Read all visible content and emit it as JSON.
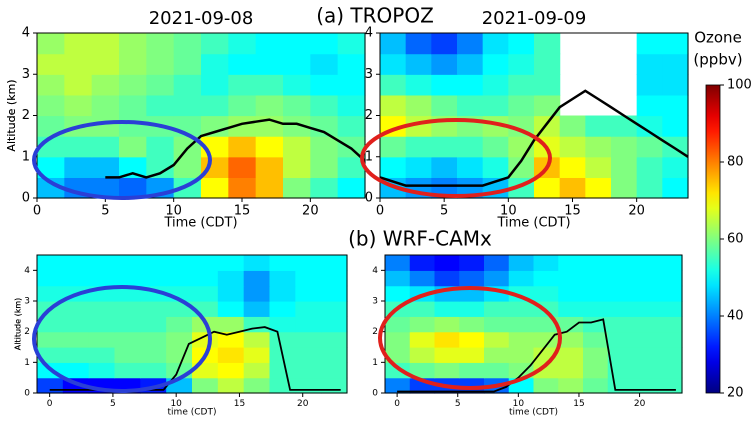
{
  "section_titles": [
    "(a) TROPOZ",
    "(b) WRF-CAMx"
  ],
  "colorbar": {
    "label": [
      "Ozone",
      "(ppbv)"
    ],
    "clim": [
      20,
      100
    ],
    "ticks": [
      20,
      40,
      60,
      80,
      100
    ]
  },
  "chart_data": [
    {
      "type": "heatmap",
      "title": "2021-09-08",
      "x_label": "Time (CDT)",
      "y_label": "Altitude (km)",
      "xlim": [
        0,
        24
      ],
      "ylim": [
        0,
        4
      ],
      "xticks": [
        0,
        5,
        10,
        15,
        20
      ],
      "yticks": [
        0,
        1,
        2,
        3,
        4
      ],
      "z": [
        [
          45,
          40,
          40,
          38,
          42,
          55,
          70,
          80,
          75,
          60,
          55,
          50
        ],
        [
          50,
          45,
          45,
          50,
          55,
          60,
          75,
          82,
          75,
          65,
          60,
          55
        ],
        [
          55,
          55,
          55,
          60,
          55,
          60,
          70,
          75,
          70,
          65,
          60,
          58
        ],
        [
          58,
          60,
          60,
          58,
          58,
          58,
          60,
          62,
          62,
          60,
          58,
          55
        ],
        [
          60,
          62,
          60,
          58,
          55,
          55,
          55,
          58,
          60,
          58,
          55,
          52
        ],
        [
          62,
          65,
          62,
          60,
          58,
          55,
          52,
          55,
          55,
          52,
          50,
          50
        ],
        [
          65,
          65,
          65,
          62,
          60,
          58,
          52,
          50,
          50,
          50,
          48,
          50
        ],
        [
          62,
          65,
          65,
          62,
          60,
          58,
          55,
          52,
          50,
          50,
          50,
          52
        ]
      ],
      "line": {
        "color": "#000000",
        "x": [
          5,
          6,
          7,
          8,
          9,
          10,
          11,
          12,
          13,
          14,
          15,
          16,
          17,
          18,
          19,
          20,
          21,
          22,
          23,
          24
        ],
        "values": [
          0.5,
          0.5,
          0.6,
          0.5,
          0.6,
          0.8,
          1.2,
          1.5,
          1.6,
          1.7,
          1.8,
          1.85,
          1.9,
          1.8,
          1.8,
          1.7,
          1.6,
          1.4,
          1.2,
          0.9
        ]
      }
    },
    {
      "type": "heatmap",
      "title": "2021-09-09",
      "x_label": "Time (CDT)",
      "y_label": "Altitude (km)",
      "xlim": [
        0,
        24
      ],
      "ylim": [
        0,
        4
      ],
      "xticks": [
        0,
        5,
        10,
        15,
        20
      ],
      "yticks": [
        0,
        1,
        2,
        3,
        4
      ],
      "z": [
        [
          45,
          42,
          40,
          42,
          45,
          55,
          70,
          75,
          70,
          60,
          55,
          50
        ],
        [
          50,
          48,
          45,
          48,
          52,
          60,
          75,
          70,
          65,
          60,
          55,
          52
        ],
        [
          58,
          55,
          55,
          55,
          58,
          62,
          68,
          65,
          62,
          60,
          58,
          55
        ],
        [
          70,
          65,
          62,
          60,
          62,
          60,
          65,
          60,
          55,
          55,
          52,
          50
        ],
        [
          65,
          62,
          58,
          55,
          55,
          58,
          60,
          null,
          null,
          null,
          50,
          50
        ],
        [
          55,
          52,
          50,
          50,
          52,
          55,
          55,
          null,
          null,
          null,
          48,
          48
        ],
        [
          48,
          45,
          42,
          45,
          50,
          52,
          55,
          null,
          null,
          null,
          48,
          48
        ],
        [
          45,
          38,
          35,
          40,
          48,
          50,
          55,
          null,
          null,
          null,
          50,
          50
        ]
      ],
      "line": {
        "color": "#000000",
        "x": [
          0,
          2,
          4,
          6,
          8,
          10,
          11,
          12,
          13,
          14,
          15,
          16,
          17,
          18,
          19,
          20,
          21,
          22,
          23,
          24
        ],
        "values": [
          0.5,
          0.3,
          0.3,
          0.3,
          0.3,
          0.5,
          0.9,
          1.4,
          1.8,
          2.2,
          2.4,
          2.6,
          2.4,
          2.2,
          2.0,
          1.8,
          1.6,
          1.4,
          1.2,
          1.0
        ]
      }
    },
    {
      "type": "heatmap",
      "x_label": "time (CDT)",
      "y_label": "Altitude (km)",
      "xlim": [
        -1,
        23.5
      ],
      "ylim": [
        0,
        4.5
      ],
      "xticks": [
        0,
        5,
        10,
        15,
        20
      ],
      "yticks": [
        0,
        1,
        2,
        3,
        4
      ],
      "z": [
        [
          35,
          30,
          30,
          30,
          32,
          45,
          60,
          65,
          60,
          55,
          55,
          55
        ],
        [
          50,
          50,
          52,
          55,
          55,
          58,
          68,
          70,
          65,
          55,
          55,
          55
        ],
        [
          55,
          55,
          55,
          58,
          58,
          60,
          70,
          72,
          68,
          55,
          55,
          55
        ],
        [
          58,
          58,
          58,
          58,
          58,
          60,
          68,
          70,
          65,
          55,
          55,
          55
        ],
        [
          55,
          55,
          55,
          55,
          55,
          58,
          62,
          62,
          55,
          52,
          52,
          52
        ],
        [
          55,
          55,
          55,
          55,
          55,
          55,
          55,
          50,
          45,
          50,
          52,
          52
        ],
        [
          52,
          52,
          52,
          52,
          52,
          52,
          52,
          48,
          42,
          48,
          50,
          50
        ],
        [
          50,
          50,
          50,
          50,
          50,
          50,
          50,
          48,
          42,
          48,
          50,
          50
        ],
        [
          50,
          50,
          50,
          50,
          50,
          50,
          50,
          50,
          48,
          50,
          50,
          50
        ]
      ],
      "line": {
        "color": "#000000",
        "x": [
          0,
          1,
          2,
          3,
          4,
          5,
          6,
          7,
          8,
          9,
          10,
          11,
          12,
          13,
          14,
          15,
          16,
          17,
          18,
          19,
          20,
          21,
          22,
          23
        ],
        "values": [
          0.1,
          0.1,
          0.1,
          0.1,
          0.1,
          0.1,
          0.1,
          0.1,
          0.1,
          0.1,
          0.6,
          1.6,
          1.8,
          2.0,
          1.9,
          2.0,
          2.1,
          2.15,
          2.0,
          0.1,
          0.1,
          0.1,
          0.1,
          0.1
        ]
      }
    },
    {
      "type": "heatmap",
      "x_label": "time (CDT)",
      "y_label": "Altitude (km)",
      "xlim": [
        -1,
        23.5
      ],
      "ylim": [
        0,
        4.5
      ],
      "xticks": [
        0,
        5,
        10,
        15,
        20
      ],
      "yticks": [
        0,
        1,
        2,
        3,
        4
      ],
      "z": [
        [
          40,
          35,
          35,
          35,
          38,
          50,
          60,
          62,
          58,
          55,
          55,
          55
        ],
        [
          55,
          58,
          60,
          58,
          58,
          60,
          65,
          65,
          60,
          55,
          55,
          55
        ],
        [
          60,
          65,
          68,
          68,
          62,
          62,
          65,
          65,
          60,
          55,
          55,
          55
        ],
        [
          60,
          68,
          72,
          70,
          65,
          62,
          62,
          62,
          58,
          55,
          55,
          55
        ],
        [
          58,
          60,
          62,
          60,
          58,
          58,
          58,
          58,
          55,
          55,
          55,
          55
        ],
        [
          55,
          55,
          52,
          52,
          55,
          55,
          55,
          52,
          52,
          52,
          52,
          52
        ],
        [
          50,
          48,
          45,
          45,
          48,
          52,
          52,
          50,
          50,
          50,
          50,
          50
        ],
        [
          45,
          40,
          35,
          38,
          42,
          48,
          50,
          50,
          50,
          50,
          50,
          50
        ],
        [
          40,
          32,
          30,
          32,
          38,
          45,
          48,
          50,
          50,
          50,
          50,
          50
        ]
      ],
      "line": {
        "color": "#000000",
        "x": [
          0,
          1,
          2,
          3,
          4,
          5,
          6,
          7,
          8,
          9,
          10,
          11,
          12,
          13,
          14,
          15,
          16,
          17,
          18,
          19,
          20,
          21,
          22,
          23
        ],
        "values": [
          0.05,
          0.05,
          0.05,
          0.05,
          0.05,
          0.05,
          0.05,
          0.05,
          0.05,
          0.2,
          0.5,
          0.9,
          1.4,
          1.9,
          2.0,
          2.3,
          2.3,
          2.4,
          0.1,
          0.1,
          0.1,
          0.1,
          0.1,
          0.1
        ]
      }
    }
  ]
}
